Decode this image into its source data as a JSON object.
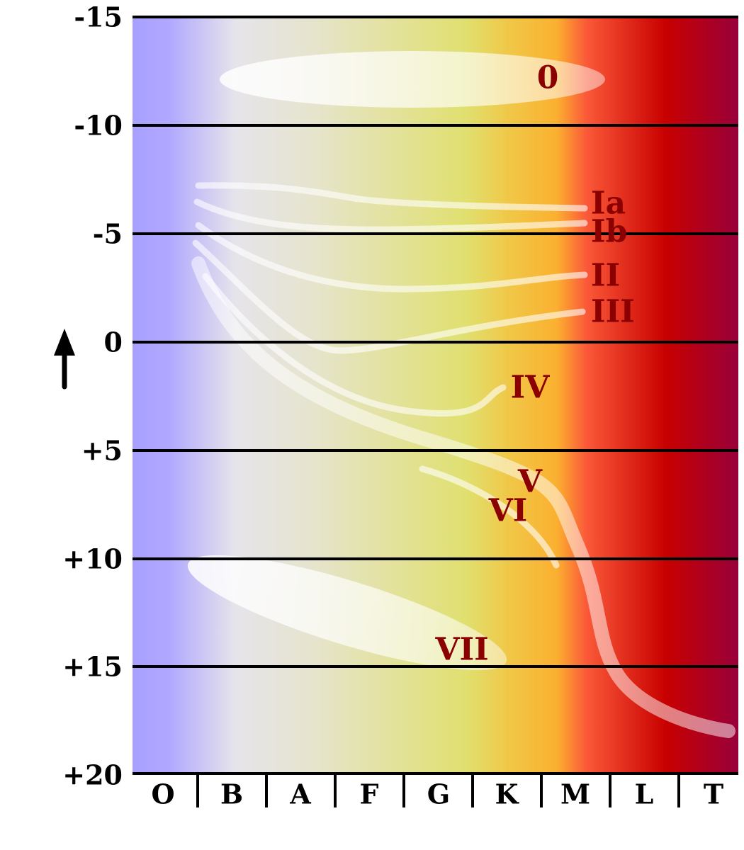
{
  "y_axis": {
    "labels": [
      "-15",
      "-10",
      "-5",
      "0",
      "+5",
      "+10",
      "+15",
      "+20"
    ]
  },
  "spectral_classes": [
    "O",
    "B",
    "A",
    "F",
    "G",
    "K",
    "M",
    "L",
    "T"
  ],
  "luminosity_classes": [
    "0",
    "Ia",
    "Ib",
    "II",
    "III",
    "IV",
    "V",
    "VI",
    "VII"
  ]
}
